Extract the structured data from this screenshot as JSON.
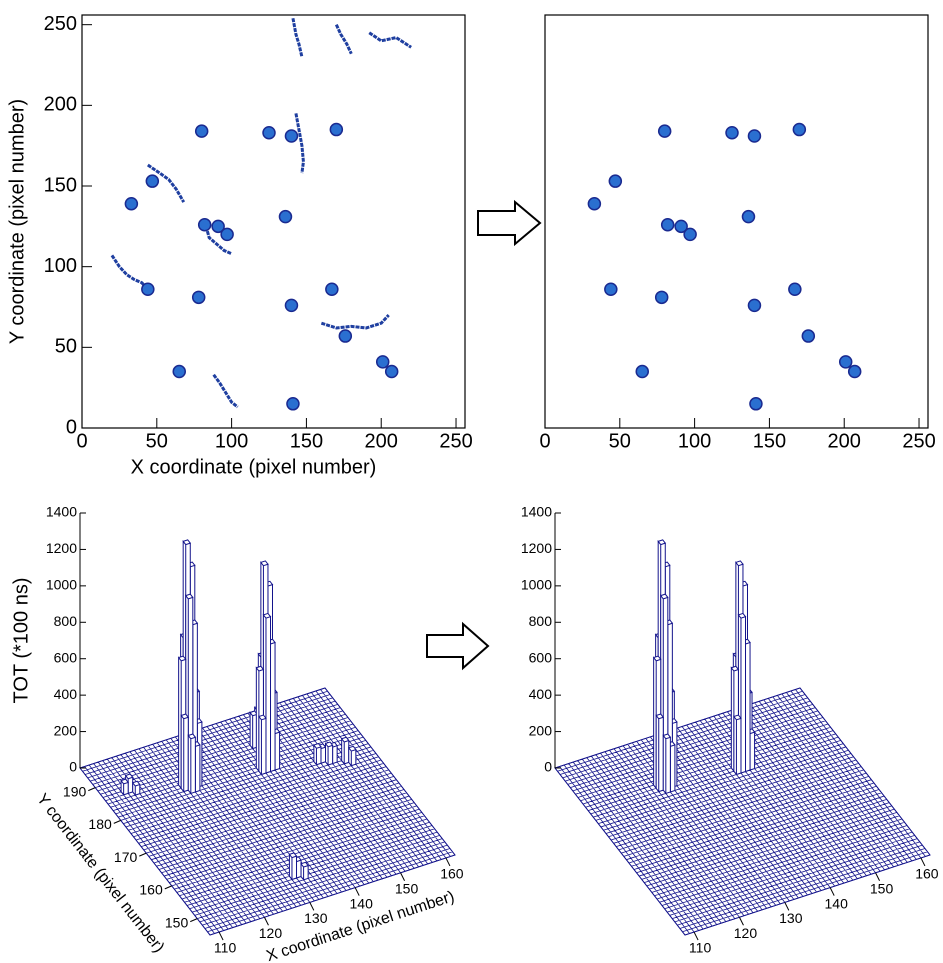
{
  "chart_data": [
    {
      "type": "scatter",
      "xlabel": "X coordinate (pixel number)",
      "ylabel": "Y coordinate (pixel number)",
      "xlim": [
        0,
        256
      ],
      "ylim": [
        0,
        256
      ],
      "xticks": [
        0,
        50,
        100,
        150,
        200,
        250
      ],
      "yticks": [
        0,
        50,
        100,
        150,
        200,
        250
      ],
      "color": "#2a6fd0",
      "x": [
        170,
        80,
        125,
        140,
        47,
        33,
        82,
        91,
        97,
        136,
        44,
        78,
        140,
        167,
        176,
        201,
        207,
        65,
        141
      ],
      "y": [
        185,
        184,
        183,
        181,
        153,
        139,
        126,
        125,
        120,
        131,
        86,
        81,
        76,
        86,
        57,
        41,
        35,
        35,
        15
      ],
      "tracks": [
        {
          "x": [
            141,
            143,
            145,
            147
          ],
          "y": [
            254,
            244,
            238,
            230
          ]
        },
        {
          "x": [
            170,
            173,
            177,
            180
          ],
          "y": [
            250,
            244,
            238,
            232
          ]
        },
        {
          "x": [
            192,
            200,
            210,
            220
          ],
          "y": [
            245,
            240,
            242,
            236
          ]
        },
        {
          "x": [
            44,
            52,
            58,
            63,
            68
          ],
          "y": [
            163,
            158,
            154,
            148,
            140
          ]
        },
        {
          "x": [
            20,
            25,
            30,
            35,
            40,
            45
          ],
          "y": [
            107,
            100,
            95,
            92,
            90,
            85
          ]
        },
        {
          "x": [
            143,
            145,
            147,
            148,
            147
          ],
          "y": [
            195,
            185,
            175,
            165,
            158
          ]
        },
        {
          "x": [
            160,
            170,
            180,
            190,
            200,
            205
          ],
          "y": [
            65,
            62,
            63,
            62,
            65,
            70
          ]
        },
        {
          "x": [
            82,
            85,
            95,
            100
          ],
          "y": [
            128,
            118,
            110,
            108
          ]
        },
        {
          "x": [
            88,
            92,
            96,
            100,
            104
          ],
          "y": [
            33,
            28,
            22,
            16,
            13
          ]
        }
      ]
    },
    {
      "type": "scatter",
      "xlim": [
        0,
        256
      ],
      "ylim": [
        0,
        256
      ],
      "xticks": [
        0,
        50,
        100,
        150,
        200,
        250
      ],
      "color": "#2a6fd0",
      "x": [
        170,
        80,
        125,
        140,
        47,
        33,
        82,
        91,
        97,
        136,
        44,
        78,
        140,
        167,
        176,
        201,
        207,
        65,
        141
      ],
      "y": [
        185,
        184,
        183,
        181,
        153,
        139,
        126,
        125,
        120,
        131,
        86,
        81,
        76,
        86,
        57,
        41,
        35,
        35,
        15
      ],
      "tracks": []
    },
    {
      "type": "lego",
      "zlabel": "TOT (*100 ns)",
      "xlabel": "X coordinate (pixel number)",
      "ylabel": "Y coordinate (pixel number)",
      "xlim": [
        108,
        162
      ],
      "ylim": [
        145,
        196
      ],
      "zlim": [
        0,
        1400
      ],
      "xticks": [
        110,
        120,
        130,
        140,
        150,
        160
      ],
      "yticks": [
        150,
        160,
        170,
        180,
        190
      ],
      "zticks": [
        0,
        200,
        400,
        600,
        800,
        1000,
        1200,
        1400
      ],
      "color": "#14148c",
      "columns": {
        "x": [
          124,
          125,
          124,
          125,
          123,
          124,
          125,
          126,
          123,
          126,
          124,
          125,
          140,
          141,
          140,
          141,
          139,
          140,
          142,
          139,
          141,
          142,
          141,
          142,
          143,
          150,
          151,
          152,
          153,
          155,
          156,
          112,
          113,
          114,
          130,
          131,
          132
        ],
        "y": [
          183,
          183,
          182,
          182,
          183,
          184,
          184,
          183,
          182,
          182,
          181,
          181,
          181,
          181,
          180,
          180,
          181,
          182,
          181,
          180,
          182,
          180,
          187,
          187,
          186,
          178,
          178,
          177,
          177,
          176,
          175,
          186,
          186,
          185,
          152,
          152,
          151
        ],
        "z": [
          1330,
          1200,
          1050,
          900,
          700,
          800,
          600,
          500,
          400,
          350,
          300,
          250,
          1120,
          1000,
          850,
          700,
          550,
          600,
          400,
          300,
          350,
          200,
          180,
          200,
          150,
          90,
          80,
          100,
          90,
          120,
          80,
          60,
          80,
          50,
          120,
          90,
          70
        ]
      }
    },
    {
      "type": "lego",
      "xlim": [
        108,
        162
      ],
      "ylim": [
        145,
        196
      ],
      "zlim": [
        0,
        1400
      ],
      "xticks": [
        110,
        120,
        130,
        140,
        150,
        160
      ],
      "zticks": [
        0,
        200,
        400,
        600,
        800,
        1000,
        1200,
        1400
      ],
      "color": "#14148c",
      "columns": {
        "x": [
          124,
          125,
          124,
          125,
          123,
          124,
          125,
          126,
          123,
          126,
          124,
          125,
          140,
          141,
          140,
          141,
          139,
          140,
          142,
          139,
          141,
          142
        ],
        "y": [
          183,
          183,
          182,
          182,
          183,
          184,
          184,
          183,
          182,
          182,
          181,
          181,
          181,
          181,
          180,
          180,
          181,
          182,
          181,
          180,
          182,
          180
        ],
        "z": [
          1330,
          1200,
          1050,
          900,
          700,
          800,
          600,
          500,
          400,
          350,
          300,
          250,
          1120,
          1000,
          850,
          700,
          550,
          600,
          400,
          300,
          350,
          200
        ]
      }
    }
  ]
}
